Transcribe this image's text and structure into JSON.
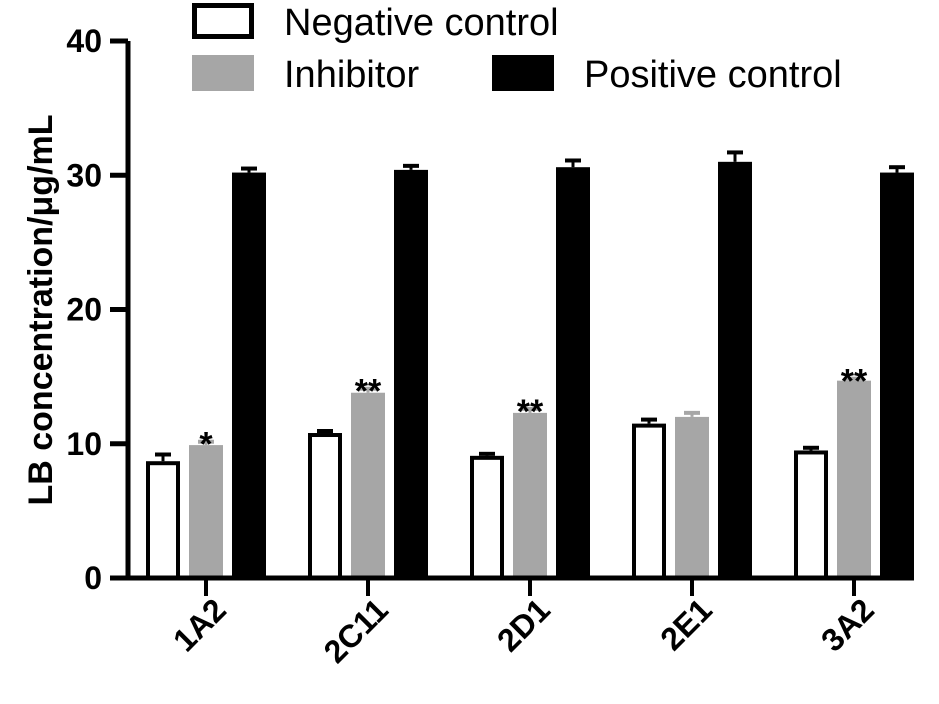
{
  "chart_data": {
    "type": "bar",
    "title": "",
    "xlabel": "",
    "ylabel": "LB concentration/μg/mL",
    "ylim": [
      0,
      40
    ],
    "yticks": [
      "0",
      "10",
      "20",
      "30",
      "40"
    ],
    "categories": [
      "1A2",
      "2C11",
      "2D1",
      "2E1",
      "3A2"
    ],
    "series": [
      {
        "name": "Negative control",
        "color": "#ffffff",
        "stroke": "#000000",
        "values": [
          8.7,
          10.8,
          9.1,
          11.5,
          9.5
        ],
        "errors": [
          0.5,
          0.15,
          0.15,
          0.3,
          0.2
        ]
      },
      {
        "name": "Inhibitor",
        "color": "#a6a6a6",
        "stroke": "#a6a6a6",
        "values": [
          9.9,
          13.8,
          12.3,
          12.0,
          14.7
        ],
        "errors": [
          0.25,
          0.3,
          0.3,
          0.3,
          0.15
        ]
      },
      {
        "name": "Positive control",
        "color": "#000000",
        "stroke": "#000000",
        "values": [
          30.2,
          30.4,
          30.6,
          31.0,
          30.2
        ],
        "errors": [
          0.3,
          0.3,
          0.5,
          0.7,
          0.4
        ]
      }
    ],
    "significance": [
      {
        "category": "1A2",
        "series": "Inhibitor",
        "label": "*"
      },
      {
        "category": "2C11",
        "series": "Inhibitor",
        "label": "**"
      },
      {
        "category": "2D1",
        "series": "Inhibitor",
        "label": "**"
      },
      {
        "category": "3A2",
        "series": "Inhibitor",
        "label": "**"
      }
    ],
    "legend_position": "top"
  }
}
